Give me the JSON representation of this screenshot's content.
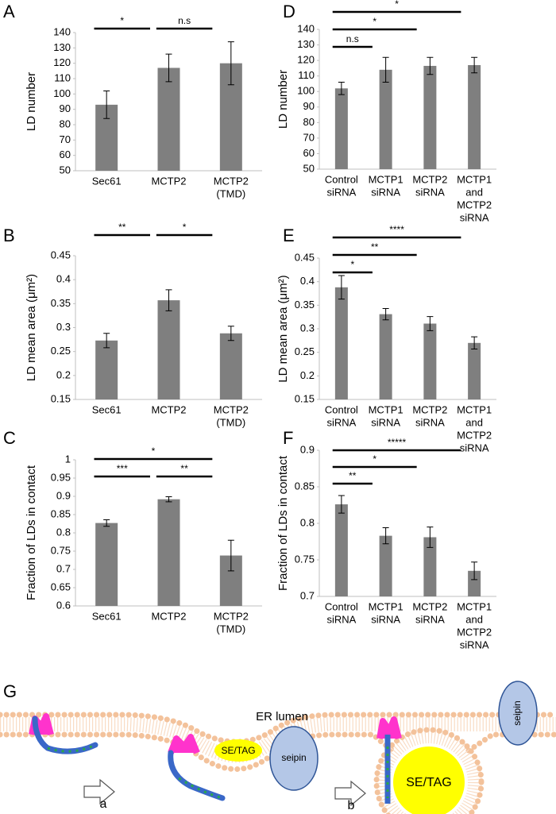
{
  "chart_data": [
    {
      "panel": "A",
      "type": "bar",
      "ylabel": "LD number",
      "color": "#7f7f7f",
      "categories": [
        [
          "Sec61"
        ],
        [
          "MCTP2"
        ],
        [
          "MCTP2",
          "(TMD)"
        ]
      ],
      "values": [
        93,
        117,
        120
      ],
      "errors": [
        9,
        9,
        14
      ],
      "ylim": [
        50,
        140
      ],
      "yticks": [
        50,
        60,
        70,
        80,
        90,
        100,
        110,
        120,
        130,
        140
      ],
      "annotations": [
        {
          "text": "*",
          "from": 0,
          "to": 1
        },
        {
          "text": "n.s",
          "from": 1,
          "to": 2
        }
      ]
    },
    {
      "panel": "B",
      "type": "bar",
      "ylabel": "LD mean area (μm²)",
      "color": "#7f7f7f",
      "categories": [
        [
          "Sec61"
        ],
        [
          "MCTP2"
        ],
        [
          "MCTP2",
          "(TMD)"
        ]
      ],
      "values": [
        0.273,
        0.357,
        0.288
      ],
      "errors": [
        0.015,
        0.022,
        0.015
      ],
      "ylim": [
        0.15,
        0.45
      ],
      "yticks": [
        0.15,
        0.2,
        0.25,
        0.3,
        0.35,
        0.4,
        0.45
      ],
      "annotations": [
        {
          "text": "**",
          "from": 0,
          "to": 1
        },
        {
          "text": "*",
          "from": 1,
          "to": 2
        }
      ]
    },
    {
      "panel": "C",
      "type": "bar",
      "ylabel": "Fraction of LDs in contact",
      "color": "#7f7f7f",
      "categories": [
        [
          "Sec61"
        ],
        [
          "MCTP2"
        ],
        [
          "MCTP2",
          "(TMD)"
        ]
      ],
      "values": [
        0.827,
        0.892,
        0.738
      ],
      "errors": [
        0.009,
        0.007,
        0.042
      ],
      "ylim": [
        0.6,
        1
      ],
      "yticks": [
        0.6,
        0.65,
        0.7,
        0.75,
        0.8,
        0.85,
        0.9,
        0.95,
        1
      ],
      "annotations": [
        {
          "text": "***",
          "from": 0,
          "to": 1
        },
        {
          "text": "**",
          "from": 1,
          "to": 2
        },
        {
          "text": "*",
          "from": 0,
          "to": 2
        }
      ]
    },
    {
      "panel": "D",
      "type": "bar",
      "ylabel": "LD number",
      "color": "#7f7f7f",
      "categories": [
        [
          "Control",
          "siRNA"
        ],
        [
          "MCTP1",
          "siRNA"
        ],
        [
          "MCTP2",
          "siRNA"
        ],
        [
          "MCTP1",
          "and",
          "MCTP2",
          "siRNA"
        ]
      ],
      "values": [
        102,
        114,
        116.5,
        117
      ],
      "errors": [
        4,
        8,
        5.5,
        5
      ],
      "ylim": [
        50,
        140
      ],
      "yticks": [
        50,
        60,
        70,
        80,
        90,
        100,
        110,
        120,
        130,
        140
      ],
      "annotations": [
        {
          "text": "n.s",
          "from": 0,
          "to": 1
        },
        {
          "text": "*",
          "from": 0,
          "to": 2
        },
        {
          "text": "*",
          "from": 0,
          "to": 3
        }
      ]
    },
    {
      "panel": "E",
      "type": "bar",
      "ylabel": "LD mean area (μm²)",
      "color": "#7f7f7f",
      "categories": [
        [
          "Control",
          "siRNA"
        ],
        [
          "MCTP1",
          "siRNA"
        ],
        [
          "MCTP2",
          "siRNA"
        ],
        [
          "MCTP1",
          "and",
          "MCTP2",
          "siRNA"
        ]
      ],
      "values": [
        0.388,
        0.331,
        0.311,
        0.27
      ],
      "errors": [
        0.025,
        0.012,
        0.015,
        0.013
      ],
      "ylim": [
        0.15,
        0.45
      ],
      "yticks": [
        0.15,
        0.2,
        0.25,
        0.3,
        0.35,
        0.4,
        0.45
      ],
      "annotations": [
        {
          "text": "*",
          "from": 0,
          "to": 1
        },
        {
          "text": "**",
          "from": 0,
          "to": 2
        },
        {
          "text": "****",
          "from": 0,
          "to": 3
        }
      ]
    },
    {
      "panel": "F",
      "type": "bar",
      "ylabel": "Fraction of LDs in contact",
      "color": "#7f7f7f",
      "categories": [
        [
          "Control",
          "siRNA"
        ],
        [
          "MCTP1",
          "siRNA"
        ],
        [
          "MCTP2",
          "siRNA"
        ],
        [
          "MCTP1",
          "and",
          "MCTP2",
          "siRNA"
        ]
      ],
      "values": [
        0.826,
        0.783,
        0.781,
        0.735
      ],
      "errors": [
        0.012,
        0.011,
        0.014,
        0.012
      ],
      "ylim": [
        0.7,
        0.9
      ],
      "yticks": [
        0.7,
        0.75,
        0.8,
        0.85,
        0.9
      ],
      "annotations": [
        {
          "text": "**",
          "from": 0,
          "to": 1
        },
        {
          "text": "*",
          "from": 0,
          "to": 2
        },
        {
          "text": "*****",
          "from": 0,
          "to": 3
        }
      ]
    }
  ],
  "diagram": {
    "panel": "G",
    "er_lumen": "ER lumen",
    "se_tag": [
      "SE/TAG",
      "SE/TAG"
    ],
    "seipin": [
      "seipin",
      "seipin"
    ],
    "steps": [
      "a",
      "b"
    ]
  }
}
